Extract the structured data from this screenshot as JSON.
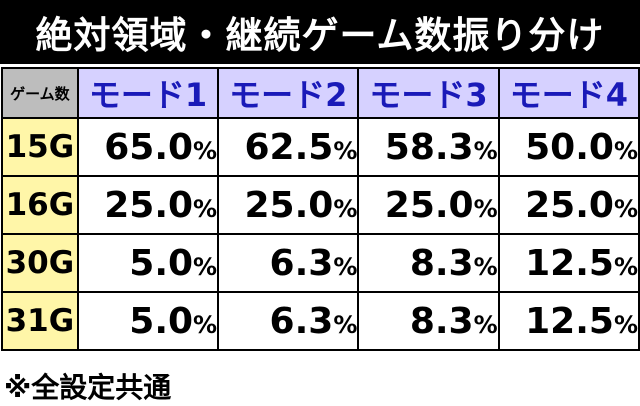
{
  "title": "絶対領域・継続ゲーム数振り分け",
  "table": {
    "corner_label": "ゲーム数",
    "columns": [
      "モード1",
      "モード2",
      "モード3",
      "モード4"
    ],
    "rows": [
      {
        "label": "15G",
        "values": [
          "65.0",
          "62.5",
          "58.3",
          "50.0"
        ]
      },
      {
        "label": "16G",
        "values": [
          "25.0",
          "25.0",
          "25.0",
          "25.0"
        ]
      },
      {
        "label": "30G",
        "values": [
          "5.0",
          "6.3",
          "8.3",
          "12.5"
        ]
      },
      {
        "label": "31G",
        "values": [
          "5.0",
          "6.3",
          "8.3",
          "12.5"
        ]
      }
    ],
    "unit": "%"
  },
  "footnote": "※全設定共通",
  "colors": {
    "title_bg": "#000000",
    "header_bg": "#d6d1ff",
    "header_text": "#1a1ab8",
    "corner_bg": "#bdbdbd",
    "row_label_bg": "#fff6a8"
  }
}
